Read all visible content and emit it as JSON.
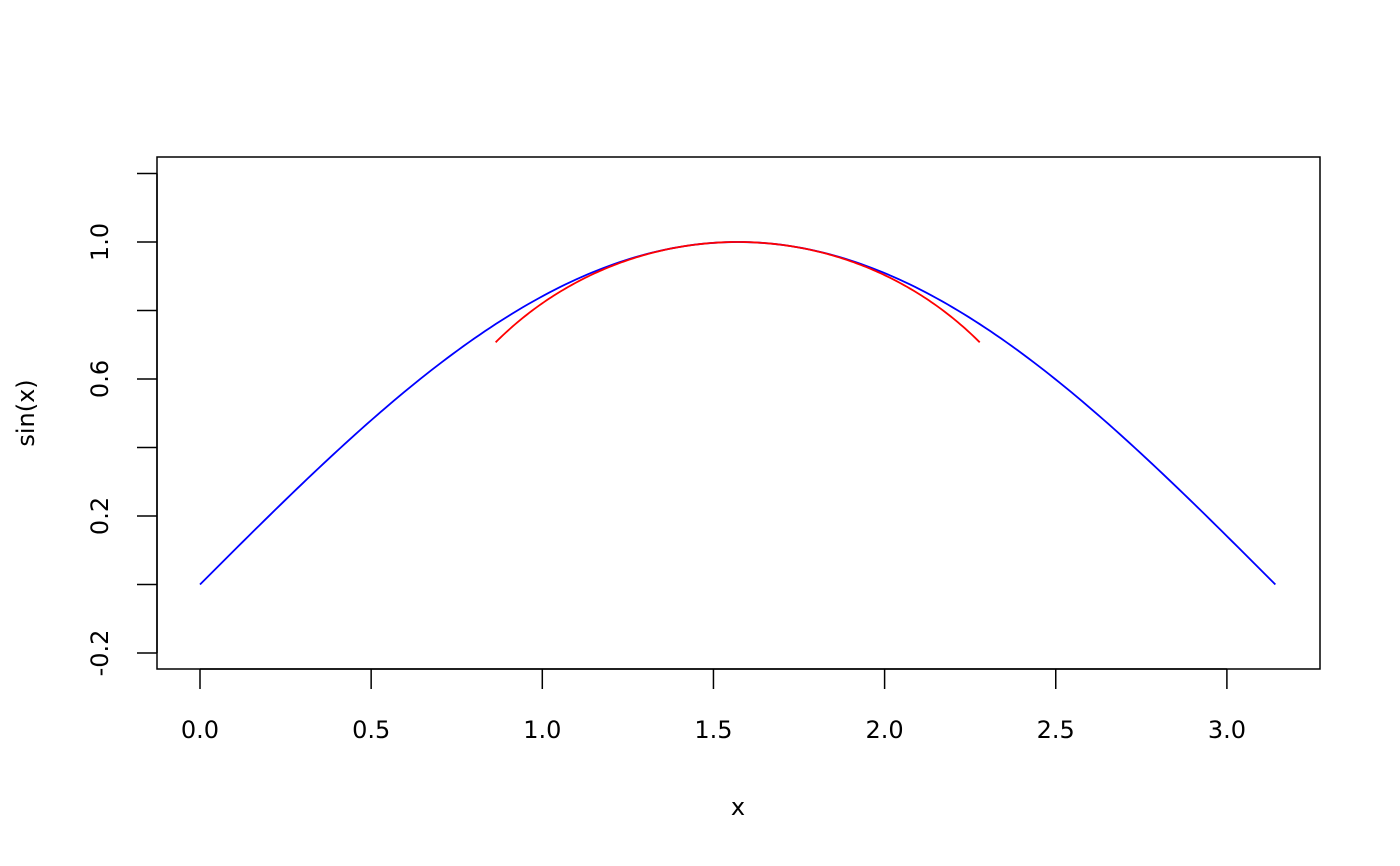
{
  "chart_data": {
    "type": "line",
    "title": "",
    "xlabel": "x",
    "ylabel": "sin(x)",
    "xlim": [
      0,
      3.14159
    ],
    "ylim": [
      -0.2,
      1.2
    ],
    "grid": false,
    "x_ticks": [
      0,
      0.5,
      1,
      1.5,
      2,
      2.5,
      3
    ],
    "x_tick_labels": [
      "0.0",
      "0.5",
      "1.0",
      "1.5",
      "2.0",
      "2.5",
      "3.0"
    ],
    "y_ticks": [
      -0.2,
      0,
      0.2,
      0.4,
      0.6,
      0.8,
      1.0,
      1.2
    ],
    "y_tick_labels": [
      {
        "value": -0.2,
        "label": "-0.2"
      },
      {
        "value": 0.2,
        "label": "0.2"
      },
      {
        "value": 0.6,
        "label": "0.6"
      },
      {
        "value": 1.0,
        "label": "1.0"
      }
    ],
    "series": [
      {
        "function": "sin(x)",
        "x_range": [
          0,
          3.14159
        ],
        "color": "#0000ff"
      },
      {
        "function": "sqrt(1-(x-pi/2)^2)",
        "x_range": [
          0.8637,
          2.2779
        ],
        "color": "#ff0000"
      }
    ]
  }
}
